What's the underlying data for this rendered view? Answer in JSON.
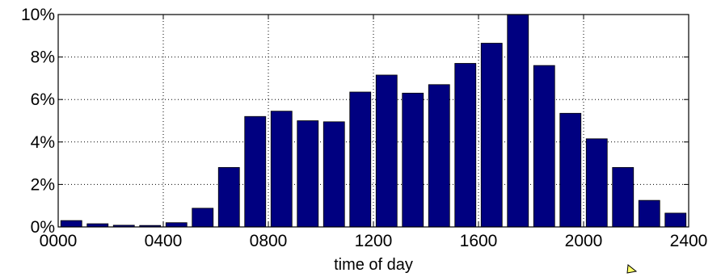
{
  "chart_data": {
    "type": "bar",
    "xlabel": "time of day",
    "ylabel": "",
    "x_tick_labels": [
      "0000",
      "0400",
      "0800",
      "1200",
      "1600",
      "2000",
      "2400"
    ],
    "x_ticks": [
      0,
      4,
      8,
      12,
      16,
      20,
      24
    ],
    "y_tick_labels": [
      "0%",
      "2%",
      "4%",
      "6%",
      "8%",
      "10%"
    ],
    "y_ticks": [
      0,
      2,
      4,
      6,
      8,
      10
    ],
    "xlim": [
      0,
      24
    ],
    "ylim": [
      0,
      10
    ],
    "grid": true,
    "bar_color": "#000080",
    "x": [
      0.5,
      1.5,
      2.5,
      3.5,
      4.5,
      5.5,
      6.5,
      7.5,
      8.5,
      9.5,
      10.5,
      11.5,
      12.5,
      13.5,
      14.5,
      15.5,
      16.5,
      17.5,
      18.5,
      19.5,
      20.5,
      21.5,
      22.5,
      23.5
    ],
    "values": [
      0.3,
      0.15,
      0.08,
      0.07,
      0.2,
      0.88,
      2.8,
      5.2,
      5.45,
      5.0,
      4.95,
      6.35,
      7.15,
      6.3,
      6.7,
      7.7,
      8.65,
      10.0,
      7.6,
      5.35,
      4.15,
      2.8,
      1.25,
      0.65
    ]
  }
}
